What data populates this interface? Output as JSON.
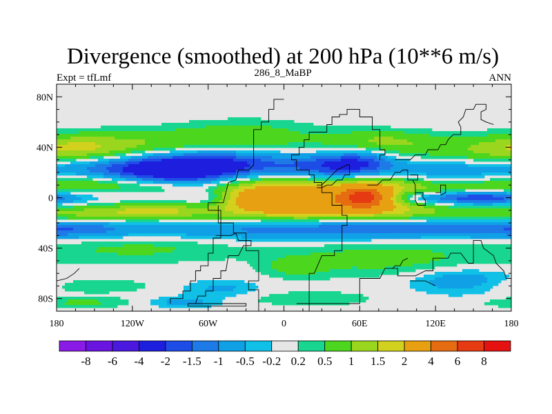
{
  "chart_data": {
    "type": "heatmap",
    "title": "Divergence (smoothed) at 200 hPa (10**6 m/s)",
    "left_string": "Expt = tfLmf",
    "center_string": "286_8_MaBP",
    "right_string": "ANN",
    "x_axis": {
      "range": [
        -180,
        180
      ],
      "ticks": [
        -180,
        -120,
        -60,
        0,
        60,
        120,
        180
      ],
      "tick_labels": [
        "180",
        "120W",
        "60W",
        "0",
        "60E",
        "120E",
        "180"
      ]
    },
    "y_axis": {
      "range": [
        -90,
        90
      ],
      "ticks": [
        80,
        40,
        0,
        -40,
        -80
      ],
      "tick_labels": [
        "80N",
        "40N",
        "0",
        "40S",
        "80S"
      ]
    },
    "levels": [
      -8,
      -6,
      -4,
      -2,
      -1.5,
      -1,
      -0.5,
      -0.2,
      0.2,
      0.5,
      1,
      1.5,
      2,
      4,
      6,
      8
    ],
    "level_labels": [
      "-8",
      "-6",
      "-4",
      "-2",
      "-1.5",
      "-1",
      "-0.5",
      "-0.2",
      "0.2",
      "0.5",
      "1",
      "1.5",
      "2",
      "4",
      "6",
      "8"
    ],
    "colors": [
      "#8a1ae6",
      "#6a14e0",
      "#4a18de",
      "#1e1ede",
      "#1e4ce6",
      "#1e7ae6",
      "#10a0e6",
      "#10c0e6",
      "#e6e6e6",
      "#18d690",
      "#4cd61e",
      "#9ad61e",
      "#d2d21e",
      "#e6a012",
      "#e66c12",
      "#e63a12",
      "#e61212"
    ],
    "zero_band_color": "#e6e6e6",
    "anomalies": [
      {
        "lon": 160,
        "lat": 33,
        "w": 70,
        "h": 8,
        "v": 1.0
      },
      {
        "lon": 75,
        "lat": 45,
        "w": 30,
        "h": 6,
        "v": 1.0
      },
      {
        "lon": 35,
        "lat": 35,
        "w": 38,
        "h": 6,
        "v": 0.6
      },
      {
        "lon": -120,
        "lat": 44,
        "w": 65,
        "h": 7,
        "v": 0.8
      },
      {
        "lon": -165,
        "lat": 40,
        "w": 30,
        "h": 6,
        "v": 0.6
      },
      {
        "lon": -30,
        "lat": 50,
        "w": 40,
        "h": 8,
        "v": 0.7
      },
      {
        "lon": -140,
        "lat": 24,
        "w": 60,
        "h": 6,
        "v": -1.0
      },
      {
        "lon": -30,
        "lat": 27,
        "w": 45,
        "h": 8,
        "v": -1.5
      },
      {
        "lon": -85,
        "lat": 21,
        "w": 38,
        "h": 9,
        "v": -2.5
      },
      {
        "lon": 30,
        "lat": 24,
        "w": 22,
        "h": 9,
        "v": -1.3
      },
      {
        "lon": 60,
        "lat": 28,
        "w": 20,
        "h": 8,
        "v": -2.0
      },
      {
        "lon": 115,
        "lat": 22,
        "w": 38,
        "h": 9,
        "v": -1.1
      },
      {
        "lon": -150,
        "lat": 12,
        "w": 45,
        "h": 5,
        "v": 0.9
      },
      {
        "lon": -95,
        "lat": 9,
        "w": 28,
        "h": 4,
        "v": 0.7
      },
      {
        "lon": 150,
        "lat": 6,
        "w": 40,
        "h": 5,
        "v": 0.7
      },
      {
        "lon": 150,
        "lat": 0,
        "w": 32,
        "h": 4,
        "v": -2.5
      },
      {
        "lon": 100,
        "lat": 0,
        "w": 18,
        "h": 5,
        "v": -1.5
      },
      {
        "lon": -60,
        "lat": 0,
        "w": 16,
        "h": 6,
        "v": -1.0
      },
      {
        "lon": -25,
        "lat": 0,
        "w": 30,
        "h": 12,
        "v": 2.4
      },
      {
        "lon": 65,
        "lat": 0,
        "w": 40,
        "h": 12,
        "v": 3.4
      },
      {
        "lon": 63,
        "lat": 0,
        "w": 10,
        "h": 5,
        "v": 4.5
      },
      {
        "lon": 15,
        "lat": -3,
        "w": 22,
        "h": 10,
        "v": 1.4
      },
      {
        "lon": -150,
        "lat": -13,
        "w": 60,
        "h": 5,
        "v": 1.3
      },
      {
        "lon": -100,
        "lat": -10,
        "w": 25,
        "h": 4,
        "v": 1.0
      },
      {
        "lon": -20,
        "lat": -25,
        "w": 90,
        "h": 6,
        "v": -0.9
      },
      {
        "lon": 90,
        "lat": -24,
        "w": 90,
        "h": 6,
        "v": -1.2
      },
      {
        "lon": -170,
        "lat": -25,
        "w": 30,
        "h": 5,
        "v": -0.8
      },
      {
        "lon": 80,
        "lat": -48,
        "w": 55,
        "h": 10,
        "v": 0.7
      },
      {
        "lon": -115,
        "lat": -40,
        "w": 55,
        "h": 8,
        "v": 0.6
      },
      {
        "lon": 10,
        "lat": -55,
        "w": 18,
        "h": 6,
        "v": 0.6
      },
      {
        "lon": 140,
        "lat": -66,
        "w": 28,
        "h": 7,
        "v": -0.9
      },
      {
        "lon": -50,
        "lat": -72,
        "w": 22,
        "h": 5,
        "v": -0.6
      },
      {
        "lon": -155,
        "lat": -70,
        "w": 35,
        "h": 4,
        "v": 0.5
      },
      {
        "lon": -160,
        "lat": -83,
        "w": 30,
        "h": 3,
        "v": 0.6
      },
      {
        "lon": -80,
        "lat": -83,
        "w": 20,
        "h": 3,
        "v": -0.7
      },
      {
        "lon": 20,
        "lat": -80,
        "w": 35,
        "h": 4,
        "v": 0.5
      }
    ],
    "coastlines": [
      [
        [
          -20,
          -90
        ],
        [
          -20,
          -73
        ],
        [
          -28,
          -73
        ],
        [
          -28,
          -66
        ],
        [
          -20,
          -66
        ],
        [
          -20,
          -42
        ],
        [
          -30,
          -42
        ],
        [
          -30,
          -28
        ],
        [
          -40,
          -28
        ],
        [
          -40,
          -20
        ],
        [
          -50,
          -20
        ],
        [
          -50,
          -10
        ],
        [
          -60,
          -10
        ],
        [
          -60,
          -4
        ],
        [
          -48,
          -4
        ],
        [
          -44,
          12
        ],
        [
          -38,
          14
        ],
        [
          -36,
          22
        ],
        [
          -28,
          22
        ],
        [
          -24,
          26
        ],
        [
          -24,
          54
        ],
        [
          -18,
          54
        ],
        [
          -18,
          60
        ],
        [
          -12,
          60
        ],
        [
          -12,
          70
        ],
        [
          -8,
          70
        ],
        [
          -8,
          78
        ],
        [
          0,
          78
        ]
      ],
      [
        [
          10,
          -84
        ],
        [
          60,
          -84
        ],
        [
          60,
          -64
        ],
        [
          76,
          -64
        ],
        [
          80,
          -56
        ],
        [
          90,
          -56
        ],
        [
          90,
          -62
        ],
        [
          104,
          -62
        ],
        [
          112,
          -58
        ],
        [
          118,
          -58
        ],
        [
          118,
          -48
        ],
        [
          130,
          -48
        ],
        [
          132,
          -44
        ],
        [
          140,
          -44
        ],
        [
          146,
          -52
        ],
        [
          150,
          -52
        ],
        [
          150,
          -34
        ],
        [
          156,
          -34
        ],
        [
          158,
          -40
        ],
        [
          166,
          -46
        ],
        [
          168,
          -52
        ],
        [
          174,
          -58
        ],
        [
          176,
          -64
        ],
        [
          180,
          -64
        ]
      ],
      [
        [
          20,
          -90
        ],
        [
          20,
          -60
        ],
        [
          24,
          -60
        ],
        [
          30,
          -46
        ],
        [
          40,
          -46
        ],
        [
          40,
          -42
        ],
        [
          46,
          -42
        ],
        [
          46,
          -22
        ],
        [
          50,
          -22
        ],
        [
          50,
          -14
        ],
        [
          46,
          -14
        ],
        [
          46,
          -6
        ],
        [
          38,
          -6
        ],
        [
          38,
          4
        ],
        [
          30,
          4
        ],
        [
          30,
          12
        ],
        [
          24,
          12
        ],
        [
          24,
          18
        ],
        [
          20,
          18
        ],
        [
          20,
          22
        ],
        [
          10,
          22
        ],
        [
          10,
          30
        ],
        [
          6,
          30
        ],
        [
          6,
          34
        ],
        [
          12,
          34
        ],
        [
          12,
          40
        ],
        [
          16,
          40
        ],
        [
          16,
          46
        ],
        [
          20,
          46
        ],
        [
          20,
          52
        ],
        [
          34,
          52
        ],
        [
          34,
          58
        ],
        [
          38,
          58
        ],
        [
          38,
          64
        ],
        [
          44,
          64
        ],
        [
          44,
          66
        ],
        [
          50,
          66
        ],
        [
          50,
          70
        ],
        [
          60,
          70
        ],
        [
          60,
          64
        ],
        [
          70,
          64
        ],
        [
          70,
          54
        ],
        [
          76,
          54
        ],
        [
          76,
          38
        ],
        [
          80,
          38
        ],
        [
          80,
          34
        ],
        [
          76,
          34
        ],
        [
          76,
          30
        ]
      ],
      [
        [
          -54,
          -30
        ],
        [
          -42,
          -30
        ],
        [
          -38,
          -28
        ],
        [
          -36,
          -34
        ],
        [
          -32,
          -34
        ],
        [
          -26,
          -34
        ],
        [
          -26,
          -38
        ],
        [
          -32,
          -38
        ],
        [
          -36,
          -46
        ],
        [
          -44,
          -46
        ],
        [
          -46,
          -58
        ],
        [
          -50,
          -58
        ],
        [
          -50,
          -64
        ],
        [
          -56,
          -64
        ],
        [
          -56,
          -74
        ],
        [
          -62,
          -74
        ],
        [
          -62,
          -78
        ],
        [
          -68,
          -78
        ],
        [
          -70,
          -84
        ],
        [
          -74,
          -84
        ]
      ],
      [
        [
          -76,
          -84
        ],
        [
          -30,
          -84
        ],
        [
          -30,
          -86
        ],
        [
          -76,
          -86
        ],
        [
          -76,
          -84
        ]
      ],
      [
        [
          -90,
          -84
        ],
        [
          -90,
          -80
        ],
        [
          -80,
          -80
        ],
        [
          -80,
          -74
        ],
        [
          -74,
          -74
        ],
        [
          -74,
          -66
        ],
        [
          -70,
          -66
        ],
        [
          -70,
          -58
        ],
        [
          -66,
          -58
        ],
        [
          -66,
          -54
        ],
        [
          -60,
          -54
        ],
        [
          -60,
          -44
        ],
        [
          -56,
          -44
        ],
        [
          -56,
          -32
        ],
        [
          -50,
          -32
        ],
        [
          -50,
          -20
        ],
        [
          -52,
          -20
        ],
        [
          -52,
          -6
        ]
      ],
      [
        [
          26,
          10
        ],
        [
          30,
          10
        ],
        [
          34,
          14
        ],
        [
          38,
          18
        ],
        [
          42,
          22
        ],
        [
          46,
          24
        ],
        [
          50,
          26
        ],
        [
          52,
          26
        ],
        [
          52,
          18
        ],
        [
          48,
          18
        ],
        [
          46,
          14
        ],
        [
          42,
          14
        ],
        [
          38,
          10
        ],
        [
          34,
          10
        ],
        [
          30,
          8
        ],
        [
          26,
          8
        ]
      ],
      [
        [
          66,
          10
        ],
        [
          74,
          10
        ],
        [
          78,
          14
        ],
        [
          84,
          14
        ],
        [
          88,
          20
        ],
        [
          92,
          20
        ],
        [
          94,
          22
        ],
        [
          98,
          22
        ],
        [
          98,
          14
        ],
        [
          102,
          14
        ],
        [
          104,
          10
        ],
        [
          104,
          4
        ]
      ],
      [
        [
          88,
          30
        ],
        [
          100,
          30
        ],
        [
          104,
          34
        ],
        [
          112,
          34
        ],
        [
          114,
          38
        ],
        [
          122,
          38
        ],
        [
          124,
          42
        ],
        [
          128,
          42
        ],
        [
          130,
          46
        ],
        [
          134,
          50
        ],
        [
          140,
          50
        ],
        [
          140,
          56
        ],
        [
          138,
          60
        ],
        [
          142,
          64
        ],
        [
          144,
          70
        ],
        [
          150,
          70
        ],
        [
          152,
          74
        ],
        [
          160,
          74
        ],
        [
          160,
          70
        ],
        [
          156,
          68
        ],
        [
          156,
          62
        ],
        [
          160,
          60
        ],
        [
          166,
          58
        ]
      ],
      [
        [
          104,
          4
        ],
        [
          110,
          4
        ],
        [
          110,
          0
        ],
        [
          112,
          -2
        ],
        [
          112,
          -6
        ],
        [
          106,
          -6
        ],
        [
          104,
          -2
        ],
        [
          104,
          4
        ]
      ],
      [
        [
          100,
          18
        ],
        [
          106,
          18
        ],
        [
          106,
          14
        ],
        [
          102,
          14
        ]
      ],
      [
        [
          120,
          4
        ],
        [
          124,
          4
        ],
        [
          124,
          10
        ],
        [
          128,
          10
        ],
        [
          128,
          4
        ],
        [
          124,
          2
        ]
      ],
      [
        [
          86,
          -56
        ],
        [
          88,
          -54
        ],
        [
          92,
          -54
        ],
        [
          94,
          -50
        ],
        [
          98,
          -48
        ]
      ],
      [
        [
          -180,
          -66
        ],
        [
          -172,
          -64
        ],
        [
          -166,
          -60
        ],
        [
          -162,
          -56
        ]
      ],
      [
        [
          100,
          -66
        ],
        [
          112,
          -66
        ],
        [
          120,
          -70
        ]
      ]
    ]
  }
}
